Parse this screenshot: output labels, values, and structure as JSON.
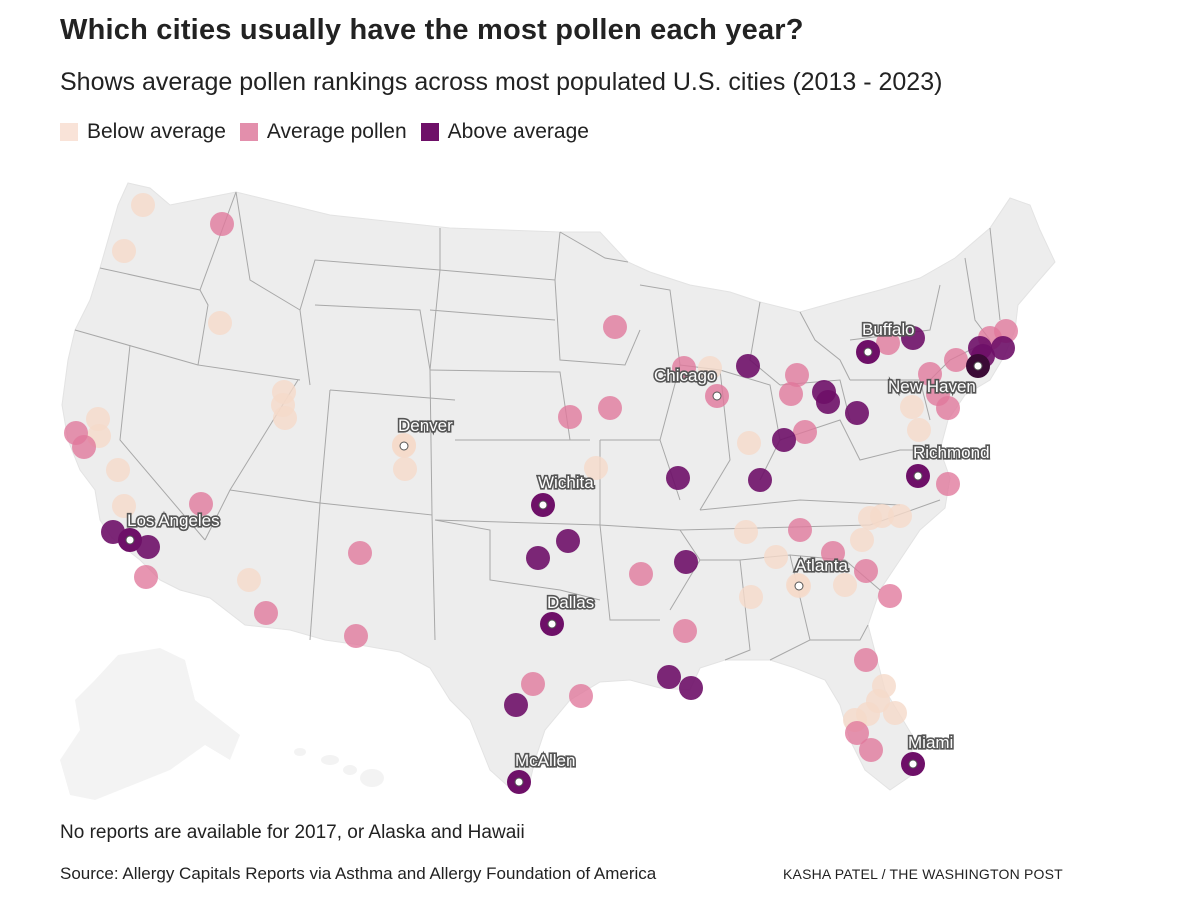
{
  "title": "Which cities usually have the most pollen each year?",
  "subtitle": "Shows average pollen rankings across most populated U.S. cities (2013 - 2023)",
  "legend": [
    {
      "label": "Below average",
      "color": "#f9e3d8"
    },
    {
      "label": "Average pollen",
      "color": "#e38fac"
    },
    {
      "label": "Above average",
      "color": "#6e1068"
    }
  ],
  "colors": {
    "land": "#ededed",
    "border": "#a8a8a8",
    "below": "#f5d9c9",
    "average": "#e0779b",
    "above": "#6e1068"
  },
  "labels": {
    "buffalo": "Buffalo",
    "chicago": "Chicago",
    "new_haven": "New Haven",
    "denver": "Denver",
    "richmond": "Richmond",
    "wichita": "Wichita",
    "los_angeles": "Los Angeles",
    "atlanta": "Atlanta",
    "dallas": "Dallas",
    "miami": "Miami",
    "mcallen": "McAllen"
  },
  "chart_data": {
    "type": "map",
    "region": "Contiguous United States",
    "categories": [
      "Below average",
      "Average pollen",
      "Above average"
    ],
    "labeled_cities": [
      {
        "name": "Buffalo",
        "category": "Above average"
      },
      {
        "name": "Chicago",
        "category": "Average pollen"
      },
      {
        "name": "New Haven",
        "category": "Above average"
      },
      {
        "name": "Denver",
        "category": "Below average"
      },
      {
        "name": "Richmond",
        "category": "Above average"
      },
      {
        "name": "Wichita",
        "category": "Above average"
      },
      {
        "name": "Los Angeles",
        "category": "Above average"
      },
      {
        "name": "Atlanta",
        "category": "Below average"
      },
      {
        "name": "Dallas",
        "category": "Above average"
      },
      {
        "name": "Miami",
        "category": "Above average"
      },
      {
        "name": "McAllen",
        "category": "Above average"
      }
    ]
  },
  "footer": {
    "note": "No reports are available for 2017, or Alaska and Hawaii",
    "source": "Source: Allergy Capitals Reports via Asthma and Allergy Foundation of America",
    "credit": "KASHA PATEL / THE WASHINGTON POST"
  }
}
